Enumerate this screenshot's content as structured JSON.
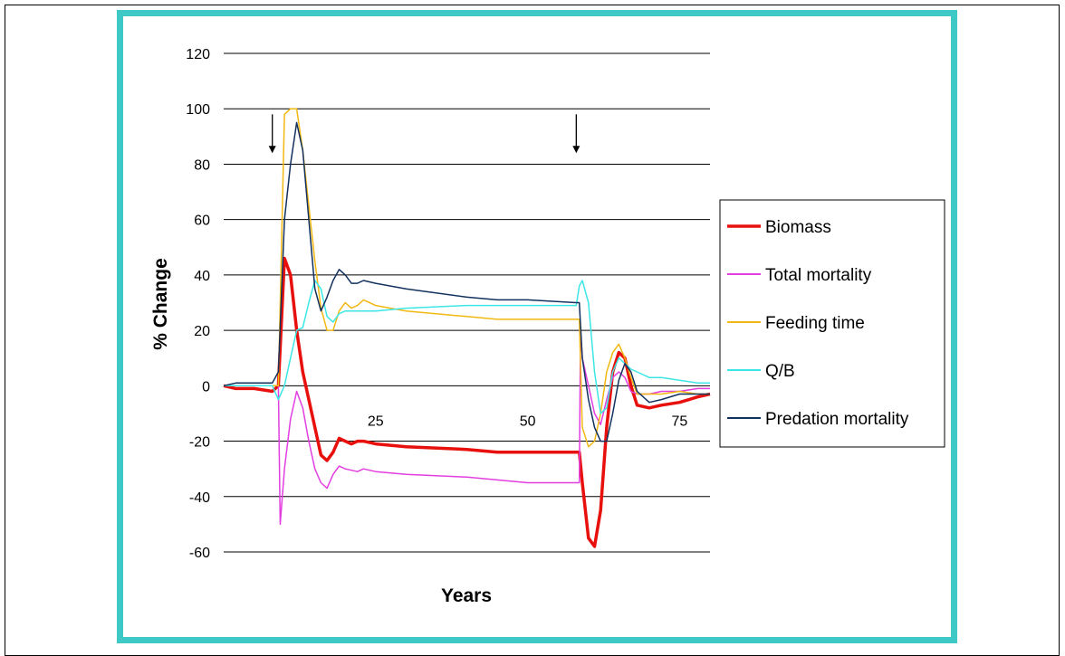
{
  "colors": {
    "frame": "#3ec8c6",
    "grid": "#000000",
    "background": "#ffffff"
  },
  "chart_data": {
    "type": "line",
    "title": "",
    "xlabel": "Years",
    "ylabel": "% Change",
    "xlim": [
      0,
      80
    ],
    "ylim": [
      -60,
      120
    ],
    "yticks": [
      "120",
      "100",
      "80",
      "60",
      "40",
      "20",
      "0",
      "-20",
      "-40",
      "-60"
    ],
    "ytick_values": [
      120,
      100,
      80,
      60,
      40,
      20,
      0,
      -20,
      -40,
      -60
    ],
    "xticks": [
      "25",
      "50",
      "75"
    ],
    "xtick_values": [
      25,
      50,
      75
    ],
    "grid": true,
    "legend_position": "right",
    "annotations": [
      {
        "type": "down-arrow",
        "x": 8
      },
      {
        "type": "down-arrow",
        "x": 58
      }
    ],
    "series": [
      {
        "name": "Biomass",
        "color": "#e8100c",
        "width": 3.5,
        "points": [
          [
            0,
            0
          ],
          [
            2,
            -1
          ],
          [
            5,
            -1
          ],
          [
            8,
            -2
          ],
          [
            9,
            0
          ],
          [
            10,
            46
          ],
          [
            11,
            40
          ],
          [
            12,
            20
          ],
          [
            13,
            5
          ],
          [
            14,
            -5
          ],
          [
            15,
            -15
          ],
          [
            16,
            -25
          ],
          [
            17,
            -27
          ],
          [
            18,
            -24
          ],
          [
            19,
            -19
          ],
          [
            20,
            -20
          ],
          [
            21,
            -21
          ],
          [
            22,
            -20
          ],
          [
            23,
            -20
          ],
          [
            25,
            -21
          ],
          [
            30,
            -22
          ],
          [
            40,
            -23
          ],
          [
            45,
            -24
          ],
          [
            50,
            -24
          ],
          [
            58,
            -24
          ],
          [
            58.5,
            -24
          ],
          [
            59,
            -35
          ],
          [
            60,
            -55
          ],
          [
            61,
            -58
          ],
          [
            62,
            -45
          ],
          [
            63,
            -15
          ],
          [
            64,
            5
          ],
          [
            65,
            12
          ],
          [
            66,
            10
          ],
          [
            67,
            0
          ],
          [
            68,
            -7
          ],
          [
            70,
            -8
          ],
          [
            72,
            -7
          ],
          [
            75,
            -6
          ],
          [
            78,
            -4
          ],
          [
            80,
            -3
          ]
        ]
      },
      {
        "name": "Total mortality",
        "color": "#e23ee0",
        "width": 1.5,
        "points": [
          [
            0,
            0
          ],
          [
            2,
            0
          ],
          [
            5,
            0
          ],
          [
            8,
            0
          ],
          [
            9,
            0
          ],
          [
            9.3,
            -50
          ],
          [
            10,
            -30
          ],
          [
            11,
            -12
          ],
          [
            12,
            -2
          ],
          [
            13,
            -8
          ],
          [
            14,
            -20
          ],
          [
            15,
            -30
          ],
          [
            16,
            -35
          ],
          [
            17,
            -37
          ],
          [
            18,
            -32
          ],
          [
            19,
            -29
          ],
          [
            20,
            -30
          ],
          [
            22,
            -31
          ],
          [
            23,
            -30
          ],
          [
            25,
            -31
          ],
          [
            30,
            -32
          ],
          [
            40,
            -33
          ],
          [
            45,
            -34
          ],
          [
            50,
            -35
          ],
          [
            58,
            -35
          ],
          [
            58.5,
            -35
          ],
          [
            58.7,
            20
          ],
          [
            59,
            10
          ],
          [
            60,
            0
          ],
          [
            61,
            -10
          ],
          [
            62,
            -14
          ],
          [
            63,
            -5
          ],
          [
            64,
            3
          ],
          [
            65,
            5
          ],
          [
            66,
            3
          ],
          [
            67,
            -2
          ],
          [
            68,
            -3
          ],
          [
            70,
            -3
          ],
          [
            72,
            -2
          ],
          [
            75,
            -2
          ],
          [
            78,
            -1
          ],
          [
            80,
            -1
          ]
        ]
      },
      {
        "name": "Feeding time",
        "color": "#f2b812",
        "width": 1.5,
        "points": [
          [
            0,
            0
          ],
          [
            2,
            0
          ],
          [
            5,
            0
          ],
          [
            8,
            0
          ],
          [
            9,
            0
          ],
          [
            10,
            98
          ],
          [
            11,
            100
          ],
          [
            12,
            100
          ],
          [
            13,
            85
          ],
          [
            14,
            65
          ],
          [
            15,
            45
          ],
          [
            16,
            28
          ],
          [
            17,
            20
          ],
          [
            18,
            20
          ],
          [
            19,
            27
          ],
          [
            20,
            30
          ],
          [
            21,
            28
          ],
          [
            22,
            29
          ],
          [
            23,
            31
          ],
          [
            25,
            29
          ],
          [
            30,
            27
          ],
          [
            40,
            25
          ],
          [
            45,
            24
          ],
          [
            50,
            24
          ],
          [
            58,
            24
          ],
          [
            58.5,
            24
          ],
          [
            59,
            -15
          ],
          [
            60,
            -22
          ],
          [
            61,
            -20
          ],
          [
            62,
            -10
          ],
          [
            63,
            5
          ],
          [
            64,
            12
          ],
          [
            65,
            15
          ],
          [
            66,
            10
          ],
          [
            67,
            3
          ],
          [
            68,
            -3
          ],
          [
            70,
            -3
          ],
          [
            72,
            -3
          ],
          [
            75,
            -2
          ],
          [
            78,
            -3
          ],
          [
            80,
            -3
          ]
        ]
      },
      {
        "name": "Q/B",
        "color": "#3de6e6",
        "width": 1.5,
        "points": [
          [
            0,
            0
          ],
          [
            2,
            0
          ],
          [
            5,
            0
          ],
          [
            8,
            0
          ],
          [
            9,
            -5
          ],
          [
            10,
            0
          ],
          [
            11,
            10
          ],
          [
            12,
            20
          ],
          [
            13,
            21
          ],
          [
            14,
            30
          ],
          [
            15,
            38
          ],
          [
            16,
            35
          ],
          [
            17,
            25
          ],
          [
            18,
            23
          ],
          [
            19,
            26
          ],
          [
            20,
            27
          ],
          [
            22,
            27
          ],
          [
            25,
            27
          ],
          [
            30,
            28
          ],
          [
            40,
            29
          ],
          [
            45,
            29
          ],
          [
            50,
            29
          ],
          [
            58,
            29
          ],
          [
            58.5,
            36
          ],
          [
            59,
            38
          ],
          [
            60,
            30
          ],
          [
            61,
            5
          ],
          [
            62,
            -10
          ],
          [
            63,
            -8
          ],
          [
            64,
            5
          ],
          [
            65,
            10
          ],
          [
            66,
            8
          ],
          [
            67,
            6
          ],
          [
            68,
            5
          ],
          [
            70,
            3
          ],
          [
            72,
            3
          ],
          [
            75,
            2
          ],
          [
            78,
            1
          ],
          [
            80,
            1
          ]
        ]
      },
      {
        "name": "Predation mortality",
        "color": "#12315e",
        "width": 1.5,
        "points": [
          [
            0,
            0
          ],
          [
            2,
            1
          ],
          [
            5,
            1
          ],
          [
            8,
            1
          ],
          [
            9,
            5
          ],
          [
            10,
            60
          ],
          [
            11,
            80
          ],
          [
            12,
            95
          ],
          [
            13,
            85
          ],
          [
            14,
            60
          ],
          [
            15,
            35
          ],
          [
            16,
            27
          ],
          [
            17,
            32
          ],
          [
            18,
            38
          ],
          [
            19,
            42
          ],
          [
            20,
            40
          ],
          [
            21,
            37
          ],
          [
            22,
            37
          ],
          [
            23,
            38
          ],
          [
            25,
            37
          ],
          [
            30,
            35
          ],
          [
            40,
            32
          ],
          [
            45,
            31
          ],
          [
            50,
            31
          ],
          [
            58,
            30
          ],
          [
            58.5,
            30
          ],
          [
            59,
            10
          ],
          [
            60,
            -5
          ],
          [
            61,
            -15
          ],
          [
            62,
            -20
          ],
          [
            63,
            -20
          ],
          [
            64,
            -10
          ],
          [
            65,
            2
          ],
          [
            66,
            8
          ],
          [
            67,
            5
          ],
          [
            68,
            -2
          ],
          [
            70,
            -6
          ],
          [
            72,
            -5
          ],
          [
            75,
            -3
          ],
          [
            78,
            -3
          ],
          [
            80,
            -3
          ]
        ]
      }
    ]
  }
}
